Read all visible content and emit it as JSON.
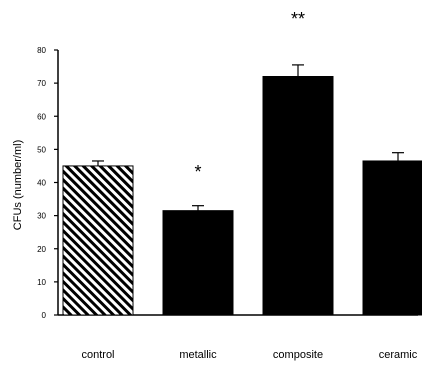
{
  "chart_data": {
    "type": "bar",
    "title": "",
    "xlabel": "",
    "ylabel": "CFUs (number/ml)",
    "ylim": [
      0,
      80
    ],
    "yticks": [
      0,
      10,
      20,
      30,
      40,
      50,
      60,
      70,
      80
    ],
    "ytick_labels": [
      "0",
      "10",
      "20",
      "30",
      "40",
      "50",
      "60",
      "70",
      "80"
    ],
    "categories": [
      "control",
      "metallic",
      "composite",
      "ceramic"
    ],
    "values": [
      45,
      31.5,
      72,
      46.5
    ],
    "errors": [
      1.5,
      1.5,
      3.5,
      2.5
    ],
    "significance": [
      "",
      "*",
      "**",
      ""
    ],
    "fills": [
      "hatched",
      "solid",
      "solid",
      "solid"
    ],
    "bar_color": "#000000",
    "grid": false,
    "legend": "none"
  }
}
